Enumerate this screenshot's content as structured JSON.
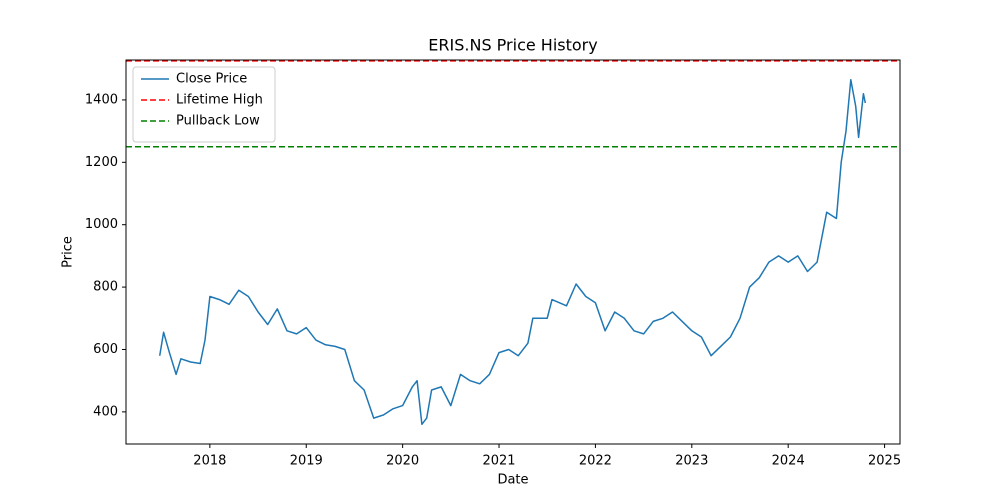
{
  "chart_data": {
    "type": "line",
    "title": "ERIS.NS Price History",
    "x_label": "Date",
    "y_label": "Price",
    "x": [
      2017.48,
      2017.52,
      2017.58,
      2017.65,
      2017.7,
      2017.8,
      2017.9,
      2017.95,
      2018.0,
      2018.1,
      2018.2,
      2018.3,
      2018.4,
      2018.5,
      2018.6,
      2018.7,
      2018.8,
      2018.9,
      2019.0,
      2019.1,
      2019.2,
      2019.3,
      2019.4,
      2019.5,
      2019.6,
      2019.7,
      2019.8,
      2019.9,
      2020.0,
      2020.1,
      2020.15,
      2020.2,
      2020.25,
      2020.3,
      2020.4,
      2020.5,
      2020.6,
      2020.7,
      2020.8,
      2020.9,
      2021.0,
      2021.1,
      2021.2,
      2021.3,
      2021.35,
      2021.5,
      2021.55,
      2021.7,
      2021.8,
      2021.9,
      2022.0,
      2022.1,
      2022.2,
      2022.3,
      2022.4,
      2022.5,
      2022.6,
      2022.7,
      2022.8,
      2022.9,
      2023.0,
      2023.1,
      2023.2,
      2023.3,
      2023.4,
      2023.5,
      2023.6,
      2023.7,
      2023.8,
      2023.9,
      2024.0,
      2024.1,
      2024.2,
      2024.3,
      2024.4,
      2024.5,
      2024.55,
      2024.6,
      2024.65,
      2024.7,
      2024.73,
      2024.78,
      2024.8
    ],
    "series": [
      {
        "name": "Close Price",
        "color": "#1f77b4",
        "values": [
          580,
          655,
          590,
          520,
          570,
          560,
          555,
          630,
          770,
          760,
          745,
          790,
          770,
          720,
          680,
          730,
          660,
          650,
          670,
          630,
          615,
          610,
          600,
          500,
          470,
          380,
          390,
          410,
          420,
          480,
          500,
          360,
          380,
          470,
          480,
          420,
          520,
          500,
          490,
          520,
          590,
          600,
          580,
          620,
          700,
          700,
          760,
          740,
          810,
          770,
          750,
          660,
          720,
          700,
          660,
          650,
          690,
          700,
          720,
          690,
          660,
          640,
          580,
          610,
          640,
          700,
          800,
          830,
          880,
          900,
          880,
          900,
          850,
          880,
          1040,
          1020,
          1200,
          1300,
          1465,
          1380,
          1280,
          1420,
          1390
        ]
      }
    ],
    "hlines": [
      {
        "name": "Lifetime High",
        "value": 1525,
        "color": "#ff0000"
      },
      {
        "name": "Pullback Low",
        "value": 1250,
        "color": "#008000"
      }
    ],
    "xlim": [
      2017.13,
      2025.16
    ],
    "xticks": [
      2018,
      2019,
      2020,
      2021,
      2022,
      2023,
      2024,
      2025
    ],
    "ylim": [
      297,
      1528
    ],
    "yticks": [
      400,
      600,
      800,
      1000,
      1200,
      1400
    ],
    "legend": "upper left"
  }
}
